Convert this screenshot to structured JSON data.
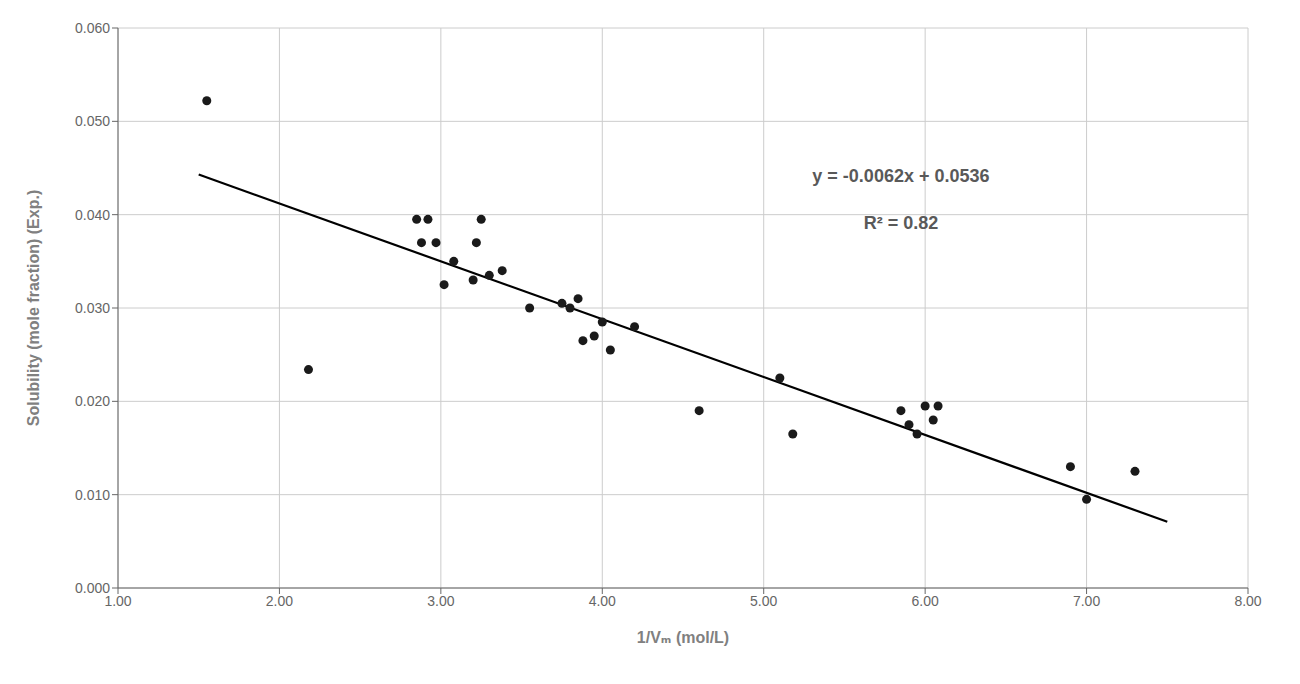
{
  "chart_data": {
    "type": "scatter",
    "xlabel": "1/Vₘ (mol/L)",
    "ylabel": "Solubility (mole fraction) (Exp.)",
    "xlim": [
      1.0,
      8.0
    ],
    "ylim": [
      0.0,
      0.06
    ],
    "xticks": [
      {
        "value": 1,
        "label": "1.00"
      },
      {
        "value": 2,
        "label": "2.00"
      },
      {
        "value": 3,
        "label": "3.00"
      },
      {
        "value": 4,
        "label": "4.00"
      },
      {
        "value": 5,
        "label": "5.00"
      },
      {
        "value": 6,
        "label": "6.00"
      },
      {
        "value": 7,
        "label": "7.00"
      },
      {
        "value": 8,
        "label": "8.00"
      }
    ],
    "yticks": [
      {
        "value": 0,
        "label": "0.000"
      },
      {
        "value": 0.01,
        "label": "0.010"
      },
      {
        "value": 0.02,
        "label": "0.020"
      },
      {
        "value": 0.03,
        "label": "0.030"
      },
      {
        "value": 0.04,
        "label": "0.040"
      },
      {
        "value": 0.05,
        "label": "0.050"
      },
      {
        "value": 0.06,
        "label": "0.060"
      }
    ],
    "grid": true,
    "series": [
      {
        "type": "line",
        "color": "#000000",
        "line_style": "solid",
        "x": [
          1.5,
          7.5
        ],
        "values": [
          0.0443,
          0.0071
        ]
      },
      {
        "type": "scatter",
        "color": "#1a1a1a",
        "marker": "circle",
        "x": [
          1.55,
          2.18,
          2.85,
          2.88,
          2.92,
          2.97,
          3.02,
          3.08,
          3.2,
          3.22,
          3.25,
          3.3,
          3.38,
          3.55,
          3.75,
          3.8,
          3.85,
          3.88,
          3.95,
          4.0,
          4.05,
          4.2,
          4.6,
          5.1,
          5.18,
          5.85,
          5.9,
          5.95,
          6.0,
          6.05,
          6.08,
          6.9,
          7.0,
          7.3
        ],
        "values": [
          0.0522,
          0.0234,
          0.0395,
          0.037,
          0.0395,
          0.037,
          0.0325,
          0.035,
          0.033,
          0.037,
          0.0395,
          0.0335,
          0.034,
          0.03,
          0.0305,
          0.03,
          0.031,
          0.0265,
          0.027,
          0.0285,
          0.0255,
          0.028,
          0.019,
          0.0225,
          0.0165,
          0.019,
          0.0175,
          0.0165,
          0.0195,
          0.018,
          0.0195,
          0.013,
          0.0095,
          0.0125
        ]
      }
    ],
    "annotations": [
      {
        "text": "y = -0.0062x + 0.0536",
        "x": 5.85,
        "y": 0.0435,
        "color": "#595959"
      },
      {
        "text": "R² = 0.82",
        "x": 5.85,
        "y": 0.0385,
        "color": "#595959"
      }
    ]
  }
}
